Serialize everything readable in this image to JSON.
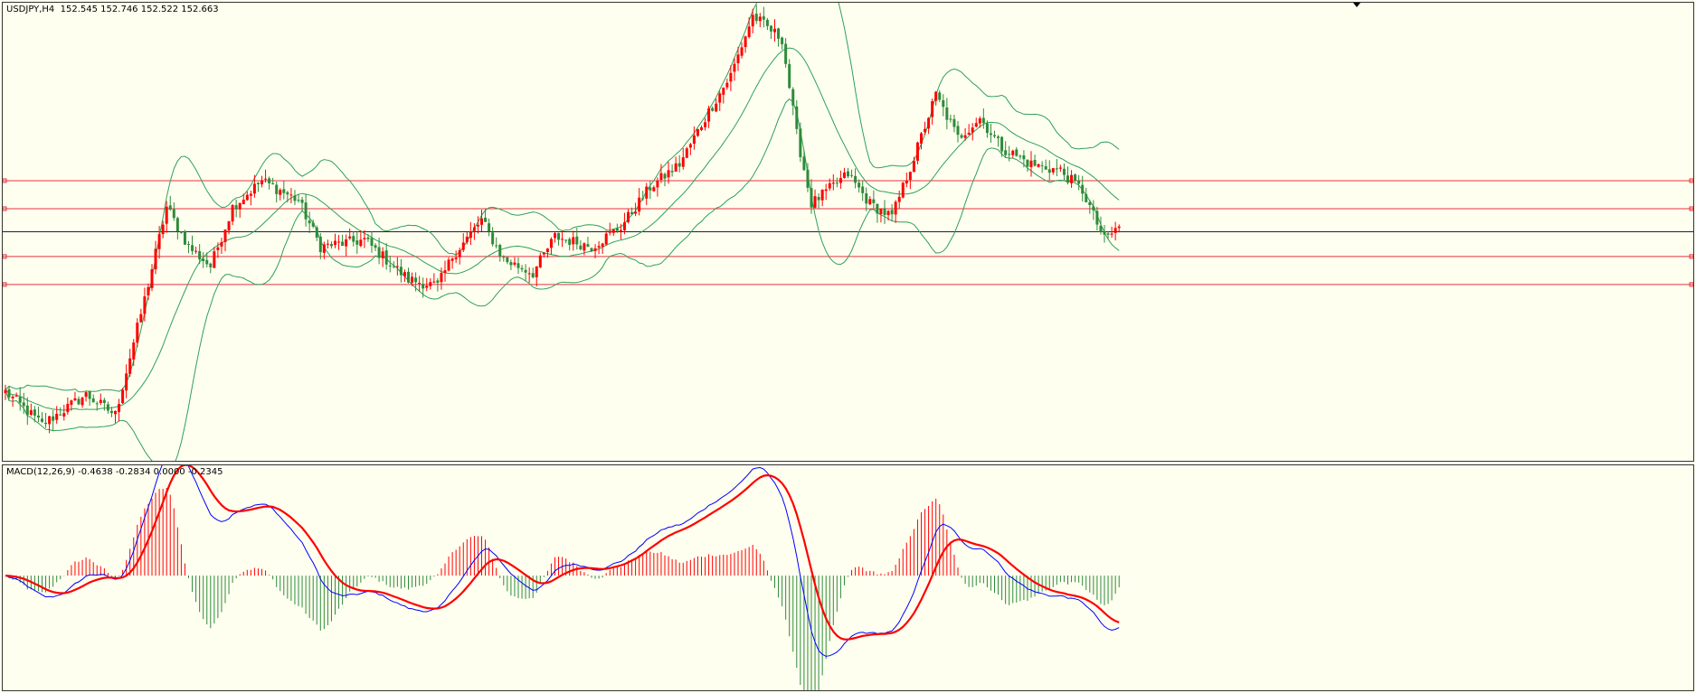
{
  "main_label": "USDJPY,H4  152.545 152.746 152.522 152.663",
  "macd_label": "MACD(12,26,9) -0.4638 -0.2834 0.0000 -0.2345",
  "colors": {
    "background": "#fffff0",
    "bull_candle": "#ff0000",
    "bear_candle": "#2e8b3a",
    "bands": "#2ea05a",
    "hline_red": "#e8323c",
    "hline_black": "#222222",
    "macd_line": "#0000ff",
    "signal_line": "#ff0000"
  },
  "chart_data": [
    {
      "type": "candlestick",
      "symbol": "USDJPY",
      "timeframe": "H4",
      "ohlc_last": [
        152.545,
        152.746,
        152.522,
        152.663
      ],
      "price_scale": [
        145.5,
        159.4
      ],
      "horizontal_lines": [
        {
          "price": 154.0,
          "color": "red"
        },
        {
          "price": 153.15,
          "color": "red"
        },
        {
          "price": 152.45,
          "color": "black"
        },
        {
          "price": 151.7,
          "color": "red"
        },
        {
          "price": 150.85,
          "color": "red"
        }
      ],
      "anchors": [
        [
          0,
          147.6
        ],
        [
          10,
          146.6
        ],
        [
          22,
          147.5
        ],
        [
          30,
          146.9
        ],
        [
          38,
          150.4
        ],
        [
          44,
          153.2
        ],
        [
          50,
          152.0
        ],
        [
          56,
          151.4
        ],
        [
          62,
          153.2
        ],
        [
          70,
          154.0
        ],
        [
          80,
          153.4
        ],
        [
          86,
          152.0
        ],
        [
          98,
          152.2
        ],
        [
          110,
          151.0
        ],
        [
          118,
          150.8
        ],
        [
          122,
          151.7
        ],
        [
          130,
          152.8
        ],
        [
          136,
          151.6
        ],
        [
          144,
          151.2
        ],
        [
          150,
          152.3
        ],
        [
          160,
          152.0
        ],
        [
          168,
          152.6
        ],
        [
          176,
          153.8
        ],
        [
          184,
          154.5
        ],
        [
          192,
          156.1
        ],
        [
          198,
          157.2
        ],
        [
          204,
          159.0
        ],
        [
          212,
          158.3
        ],
        [
          216,
          155.4
        ],
        [
          220,
          153.3
        ],
        [
          230,
          154.2
        ],
        [
          236,
          153.3
        ],
        [
          242,
          152.9
        ],
        [
          248,
          154.7
        ],
        [
          254,
          156.6
        ],
        [
          260,
          155.3
        ],
        [
          266,
          155.9
        ],
        [
          272,
          155.0
        ],
        [
          280,
          154.5
        ],
        [
          288,
          154.3
        ],
        [
          294,
          153.7
        ],
        [
          300,
          152.2
        ],
        [
          304,
          152.6
        ]
      ],
      "bollinger": {
        "period": 20,
        "deviation": 2
      }
    },
    {
      "type": "macd",
      "params": [
        12,
        26,
        9
      ],
      "values": {
        "macd": -0.4638,
        "signal": -0.2834,
        "extra": 0.0,
        "histogram": -0.2345
      },
      "y_range": [
        -1.3,
        1.25
      ]
    }
  ]
}
